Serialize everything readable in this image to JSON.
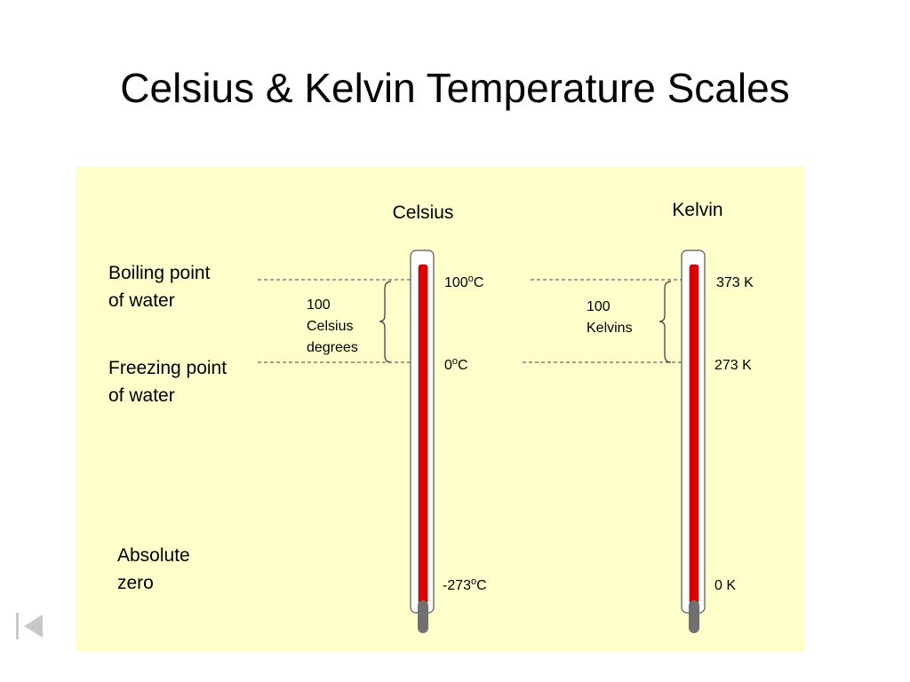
{
  "title": "Celsius & Kelvin Temperature Scales",
  "scales": [
    {
      "name": "Celsius",
      "points": [
        {
          "number": "100",
          "sup": "o",
          "unit": "C"
        },
        {
          "number": "0",
          "sup": "o",
          "unit": "C"
        },
        {
          "number": "-273",
          "sup": "o",
          "unit": "C"
        }
      ]
    },
    {
      "name": "Kelvin",
      "points": [
        "373 K",
        "273 K",
        "0 K"
      ]
    }
  ],
  "reference_points": [
    [
      "Boiling point",
      "of water"
    ],
    [
      "Freezing point",
      "of water"
    ],
    [
      "Absolute",
      "zero"
    ]
  ],
  "intervals": [
    [
      "100",
      "Celsius",
      "degrees"
    ],
    [
      "100",
      "Kelvins"
    ]
  ]
}
